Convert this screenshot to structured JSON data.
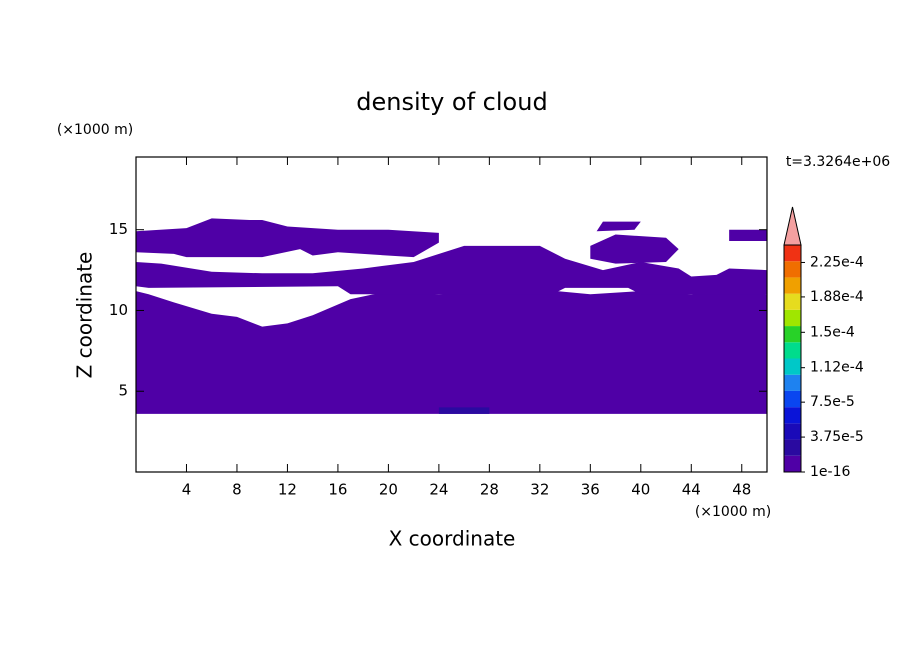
{
  "chart_data": {
    "type": "contour",
    "title": "density of cloud",
    "xlabel": "X coordinate",
    "ylabel": "Z coordinate",
    "xunit": "(×1000 m)",
    "yunit": "(×1000 m)",
    "time_label": "t=3.3264e+06",
    "xlim": [
      0,
      50
    ],
    "ylim": [
      0,
      19.5
    ],
    "xticks": [
      4,
      8,
      12,
      16,
      20,
      24,
      28,
      32,
      36,
      40,
      44,
      48
    ],
    "yticks": [
      5,
      10,
      15
    ],
    "colorbar": {
      "clim": [
        0,
        0.00024375
      ],
      "colors": [
        "#4f00a6",
        "#2a0aa0",
        "#1a0ab8",
        "#0a14d8",
        "#0a46f0",
        "#1e82f0",
        "#00c8c8",
        "#00dc8c",
        "#28d228",
        "#a0e600",
        "#e6dc1e",
        "#f0a000",
        "#f06e00",
        "#f03214"
      ],
      "extend_color": "#f4a0a0",
      "ticks": [
        {
          "value": 1e-16,
          "label": "1e-16"
        },
        {
          "value": 3.75e-05,
          "label": "3.75e-5"
        },
        {
          "value": 7.5e-05,
          "label": "7.5e-5"
        },
        {
          "value": 0.000112,
          "label": "1.12e-4"
        },
        {
          "value": 0.00015,
          "label": "1.5e-4"
        },
        {
          "value": 0.000188,
          "label": "1.88e-4"
        },
        {
          "value": 0.000225,
          "label": "2.25e-4"
        }
      ]
    },
    "regions": [
      {
        "color": "#4f00a6",
        "x": [
          0,
          50,
          50,
          47,
          44,
          40,
          36,
          32,
          28,
          24,
          20,
          17,
          14,
          12,
          10,
          8,
          6,
          3,
          1,
          0
        ],
        "z": [
          3.6,
          3.6,
          11.0,
          11.3,
          11.0,
          11.2,
          11.0,
          11.3,
          11.2,
          11.0,
          11.2,
          10.7,
          9.7,
          9.2,
          9.0,
          9.6,
          9.8,
          10.5,
          11.0,
          11.2
        ]
      },
      {
        "color": "#4f00a6",
        "x": [
          0,
          1,
          16,
          17,
          33,
          34,
          39,
          40,
          50,
          50,
          47,
          46,
          44,
          43,
          40,
          37,
          34,
          32,
          26,
          22,
          18,
          14,
          10,
          6,
          2,
          0
        ],
        "z": [
          11.5,
          11.4,
          11.5,
          11.0,
          11.0,
          11.4,
          11.4,
          11.0,
          11.0,
          12.5,
          12.6,
          12.2,
          12.1,
          12.6,
          13.0,
          12.5,
          13.2,
          14.0,
          14.0,
          13.0,
          12.6,
          12.3,
          12.3,
          12.4,
          12.9,
          13.0
        ]
      },
      {
        "color": "#4f00a6",
        "x": [
          0,
          3,
          4,
          10,
          13,
          14,
          16,
          22,
          24,
          24,
          20,
          16,
          12,
          10,
          9,
          6,
          4,
          0
        ],
        "z": [
          13.6,
          13.5,
          13.3,
          13.3,
          13.8,
          13.4,
          13.6,
          13.3,
          14.2,
          14.8,
          15.0,
          15.0,
          15.2,
          15.6,
          15.6,
          15.7,
          15.1,
          14.9
        ]
      },
      {
        "color": "#4f00a6",
        "x": [
          36,
          38,
          42,
          43,
          42,
          38,
          36
        ],
        "z": [
          13.2,
          12.9,
          13.0,
          13.8,
          14.5,
          14.7,
          14.0
        ]
      },
      {
        "color": "#4f00a6",
        "x": [
          47,
          50,
          50,
          47
        ],
        "z": [
          14.3,
          14.3,
          15.0,
          15.0
        ]
      },
      {
        "color": "#4f00a6",
        "x": [
          36.5,
          39.5,
          40,
          37
        ],
        "z": [
          14.9,
          15.0,
          15.5,
          15.5
        ]
      },
      {
        "color": "#2a0aa0",
        "x": [
          24,
          28,
          28,
          24
        ],
        "z": [
          3.6,
          3.6,
          4.0,
          4.0
        ]
      }
    ]
  }
}
